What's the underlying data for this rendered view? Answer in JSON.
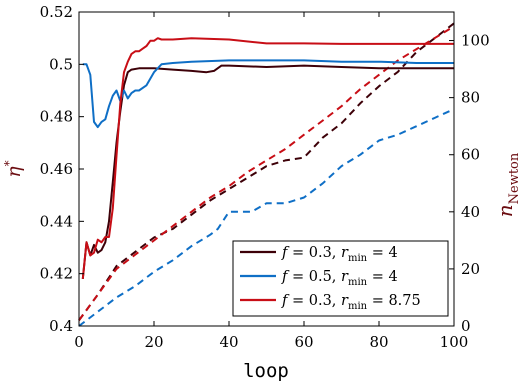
{
  "chart_data": {
    "type": "line",
    "xlabel": "loop",
    "ylabel_left": "η*",
    "ylabel_right": "n_Newton",
    "xlim": [
      0,
      100
    ],
    "ylim_left": [
      0.4,
      0.52
    ],
    "ylim_right": [
      0,
      110
    ],
    "xticks": [
      "0",
      "20",
      "40",
      "60",
      "80",
      "100"
    ],
    "yticks_left": [
      "0.4",
      "0.42",
      "0.44",
      "0.46",
      "0.48",
      "0.5",
      "0.52"
    ],
    "yticks_right": [
      "0",
      "20",
      "40",
      "60",
      "80",
      "100"
    ],
    "grid": false,
    "legend_position": "bottom-right",
    "series": [
      {
        "name": "f = 0.3, r_min = 4",
        "color": "#3d0008",
        "axis": "left",
        "style": "solid",
        "x": [
          1,
          2,
          3,
          4,
          5,
          6,
          7,
          8,
          9,
          10,
          11,
          12,
          13,
          14,
          16,
          18,
          20,
          25,
          30,
          34,
          36,
          38,
          40,
          50,
          60,
          70,
          80,
          90,
          100
        ],
        "y": [
          0.418,
          0.432,
          0.427,
          0.431,
          0.428,
          0.429,
          0.432,
          0.44,
          0.455,
          0.47,
          0.482,
          0.492,
          0.497,
          0.498,
          0.4985,
          0.4985,
          0.4985,
          0.498,
          0.4975,
          0.497,
          0.4975,
          0.4995,
          0.4995,
          0.499,
          0.4995,
          0.499,
          0.4985,
          0.4985,
          0.4985
        ]
      },
      {
        "name": "f = 0.5, r_min = 4",
        "color": "#0f6fc6",
        "axis": "left",
        "style": "solid",
        "x": [
          1,
          2,
          3,
          4,
          5,
          6,
          7,
          8,
          9,
          10,
          11,
          12,
          13,
          14,
          15,
          16,
          18,
          20,
          22,
          25,
          30,
          40,
          50,
          60,
          70,
          80,
          90,
          100
        ],
        "y": [
          0.5,
          0.5,
          0.496,
          0.478,
          0.476,
          0.478,
          0.479,
          0.484,
          0.488,
          0.49,
          0.486,
          0.49,
          0.487,
          0.489,
          0.49,
          0.49,
          0.492,
          0.497,
          0.5,
          0.5005,
          0.501,
          0.5015,
          0.5015,
          0.5015,
          0.501,
          0.501,
          0.5005,
          0.5005
        ]
      },
      {
        "name": "f = 0.3, r_min = 8.75",
        "color": "#c80e16",
        "axis": "left",
        "style": "solid",
        "x": [
          1,
          2,
          3,
          4,
          5,
          6,
          7,
          8,
          9,
          10,
          11,
          12,
          13,
          14,
          15,
          16,
          17,
          18,
          19,
          20,
          21,
          22,
          25,
          30,
          40,
          50,
          60,
          70,
          80,
          90,
          100
        ],
        "y": [
          0.418,
          0.432,
          0.427,
          0.428,
          0.433,
          0.432,
          0.434,
          0.434,
          0.445,
          0.465,
          0.485,
          0.497,
          0.501,
          0.504,
          0.505,
          0.505,
          0.506,
          0.507,
          0.509,
          0.509,
          0.51,
          0.5095,
          0.5095,
          0.51,
          0.5095,
          0.508,
          0.508,
          0.5078,
          0.5078,
          0.5078,
          0.5078
        ]
      },
      {
        "name": "",
        "color": "#3d0008",
        "axis": "right",
        "style": "dashed",
        "x": [
          0,
          5,
          10,
          15,
          20,
          25,
          30,
          35,
          40,
          45,
          50,
          55,
          60,
          65,
          70,
          75,
          80,
          85,
          90,
          95,
          100
        ],
        "y": [
          2,
          11,
          21,
          26,
          31,
          34,
          39,
          44,
          48,
          52,
          56,
          58,
          59,
          66,
          71,
          78,
          84,
          89,
          96,
          101,
          106
        ]
      },
      {
        "name": "",
        "color": "#0f6fc6",
        "axis": "right",
        "style": "dashed",
        "x": [
          0,
          5,
          10,
          15,
          20,
          25,
          30,
          35,
          37,
          40,
          43,
          46,
          50,
          55,
          60,
          65,
          70,
          75,
          80,
          85,
          90,
          95,
          100
        ],
        "y": [
          0,
          5,
          10,
          14,
          19,
          23,
          28,
          32,
          34,
          40,
          40,
          40,
          43,
          43,
          45,
          50,
          56,
          60,
          65,
          67,
          70,
          73,
          76
        ]
      },
      {
        "name": "",
        "color": "#c80e16",
        "axis": "right",
        "style": "dashed",
        "x": [
          0,
          5,
          10,
          15,
          20,
          25,
          30,
          35,
          40,
          45,
          50,
          55,
          60,
          65,
          70,
          75,
          80,
          85,
          90,
          95,
          100
        ],
        "y": [
          2,
          11,
          20,
          25,
          30,
          35,
          40,
          45,
          49,
          54,
          58,
          62,
          67,
          72,
          77,
          83,
          88,
          93,
          97,
          101,
          105
        ]
      }
    ]
  }
}
